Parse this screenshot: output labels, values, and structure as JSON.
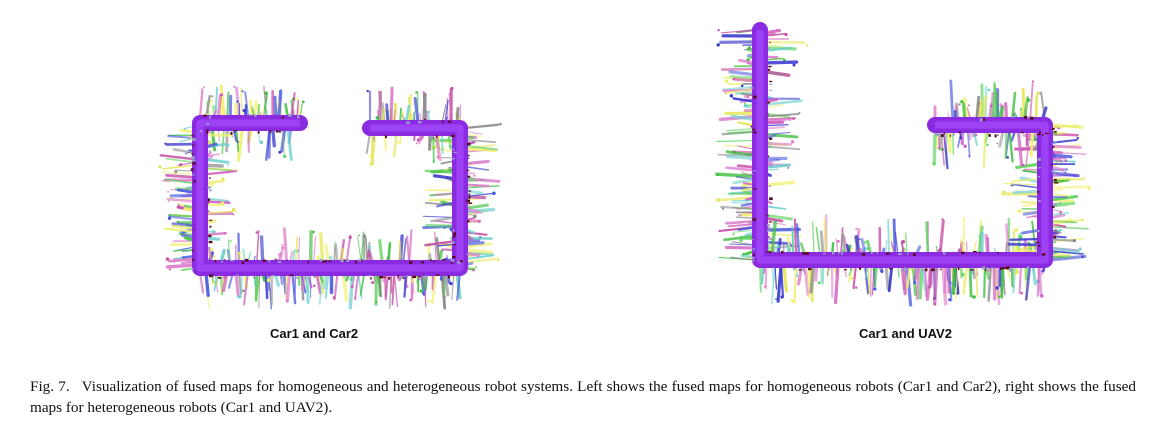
{
  "figure": {
    "panels": [
      {
        "id": "left",
        "caption": "Car1 and Car2",
        "shape": "c-shape"
      },
      {
        "id": "right",
        "caption": "Car1 and UAV2",
        "shape": "l-shape"
      }
    ],
    "caption_label": "Fig. 7.",
    "caption_text": "Visualization of fused maps for homogeneous and heterogeneous robot systems. Left shows the fused maps for homogeneous robots (Car1 and Car2), right shows the fused maps for heterogeneous robots (Car1 and UAV2)."
  },
  "colors": {
    "path": "#8a2be2",
    "path_light": "#a64dff",
    "dark_points": "#5a0a1a",
    "clutter": [
      "#e6e65a",
      "#f0f070",
      "#5fd35f",
      "#3fbf3f",
      "#4a5ae0",
      "#3a3ad0",
      "#d060c0",
      "#c850a8",
      "#e080d0",
      "#8a8a8a",
      "#70d0d0"
    ]
  }
}
